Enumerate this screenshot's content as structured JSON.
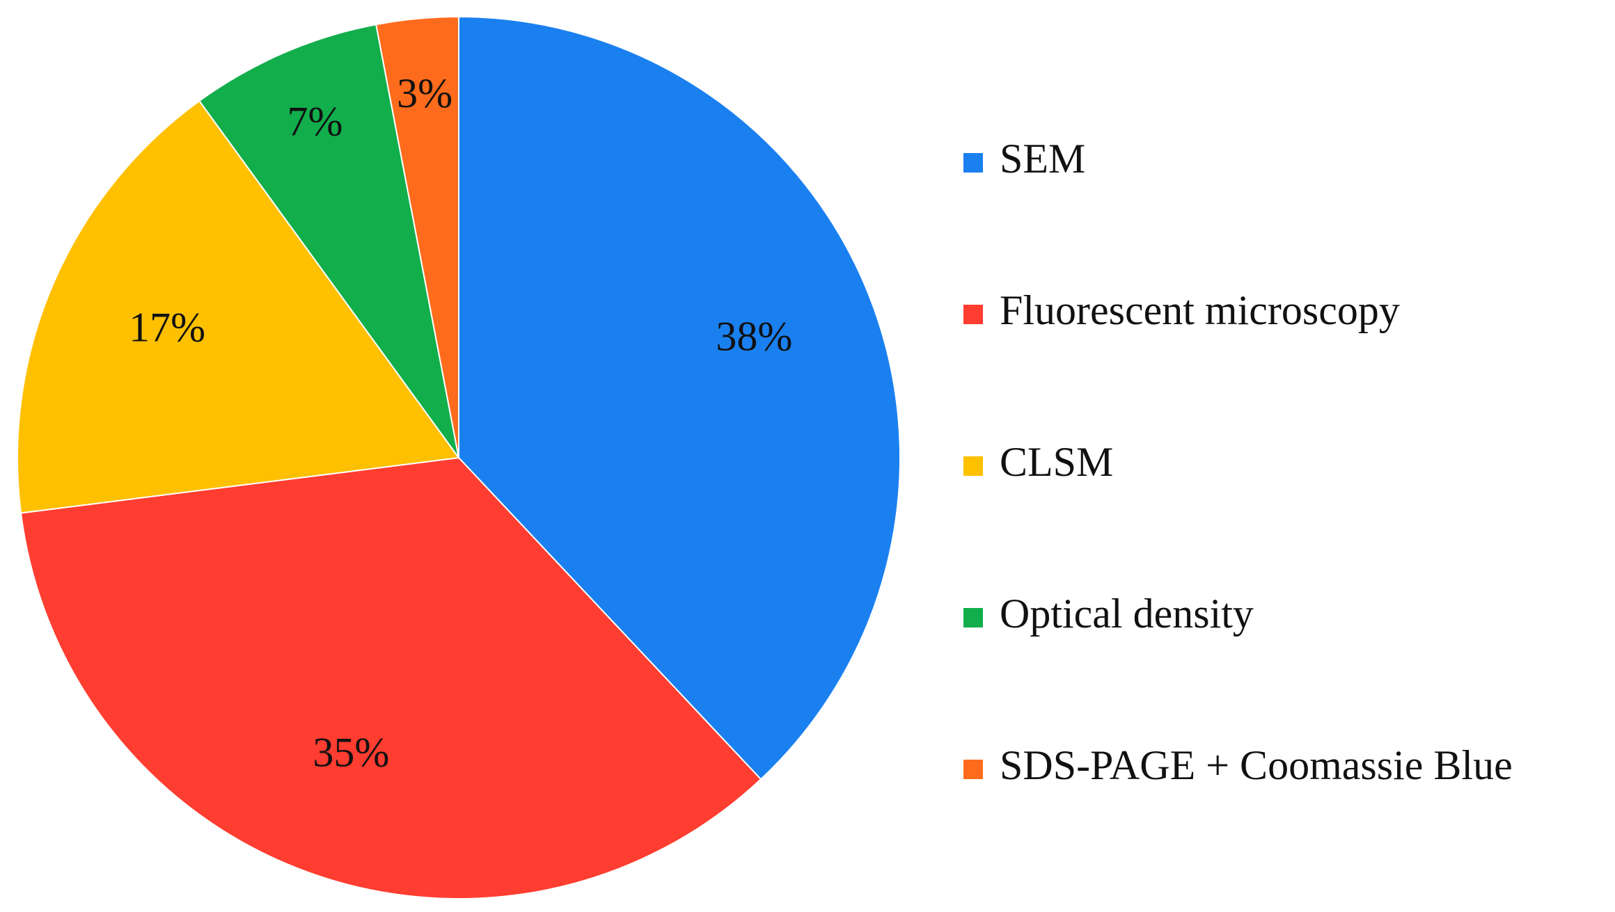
{
  "chart_data": {
    "type": "pie",
    "categories": [
      "SEM",
      "Fluorescent microscopy",
      "CLSM",
      "Optical density",
      "SDS-PAGE + Coomassie Blue"
    ],
    "values": [
      38,
      35,
      17,
      7,
      3
    ],
    "value_labels": [
      "38%",
      "35%",
      "17%",
      "7%",
      "3%"
    ],
    "colors": [
      "#1a80f0",
      "#ff3d30",
      "#ffc000",
      "#12ae4b",
      "#ff6b1c"
    ],
    "legend": "right"
  }
}
